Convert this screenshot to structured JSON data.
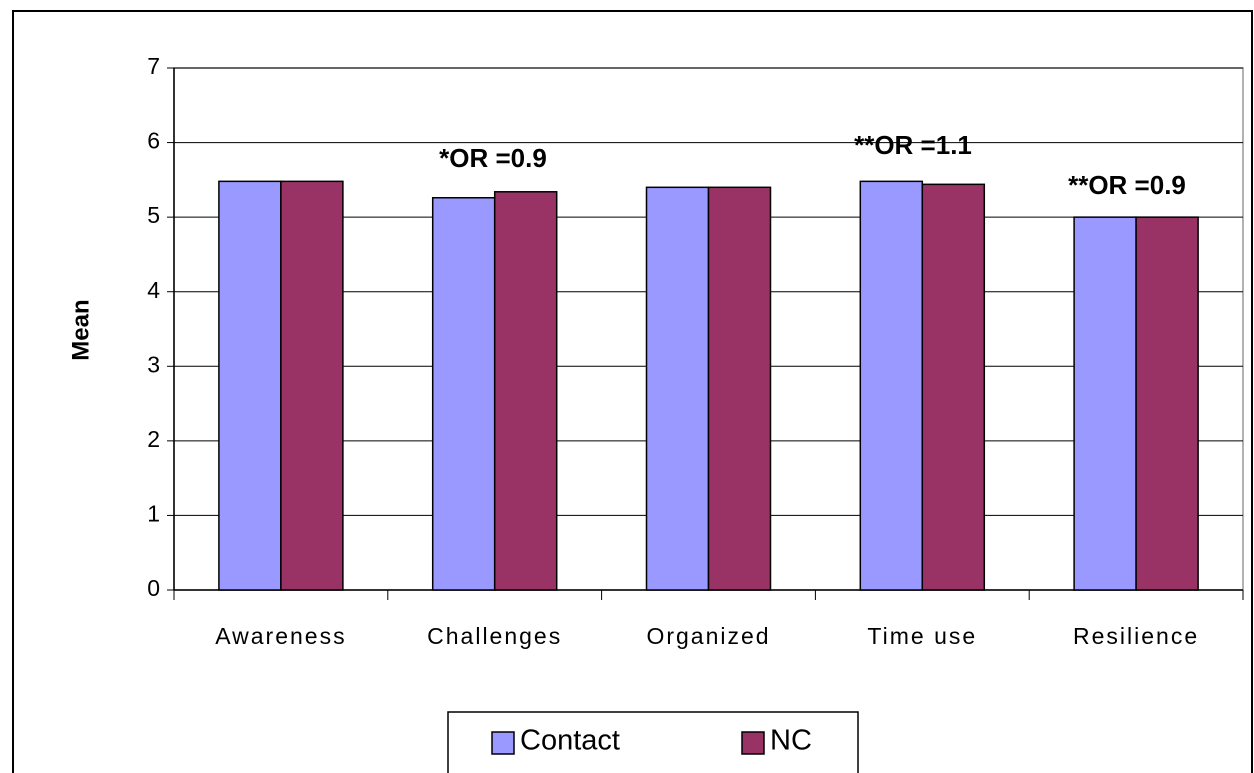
{
  "chart_data": {
    "type": "bar",
    "y_label": "Mean",
    "categories": [
      "Awareness",
      "Challenges",
      "Organized",
      "Time use",
      "Resilience"
    ],
    "series": [
      {
        "name": "Contact",
        "color": "#9999ff",
        "values": [
          5.48,
          5.26,
          5.4,
          5.48,
          5.0
        ]
      },
      {
        "name": "NC",
        "color": "#993366",
        "values": [
          5.48,
          5.34,
          5.4,
          5.44,
          5.0
        ]
      }
    ],
    "annotations": [
      "*OR =0.9",
      "**OR =1.1",
      "**OR =0.9"
    ],
    "ylim": [
      0,
      7
    ],
    "yticks": [
      0,
      1,
      2,
      3,
      4,
      5,
      6,
      7
    ],
    "grid": true,
    "legend": "bottom"
  }
}
